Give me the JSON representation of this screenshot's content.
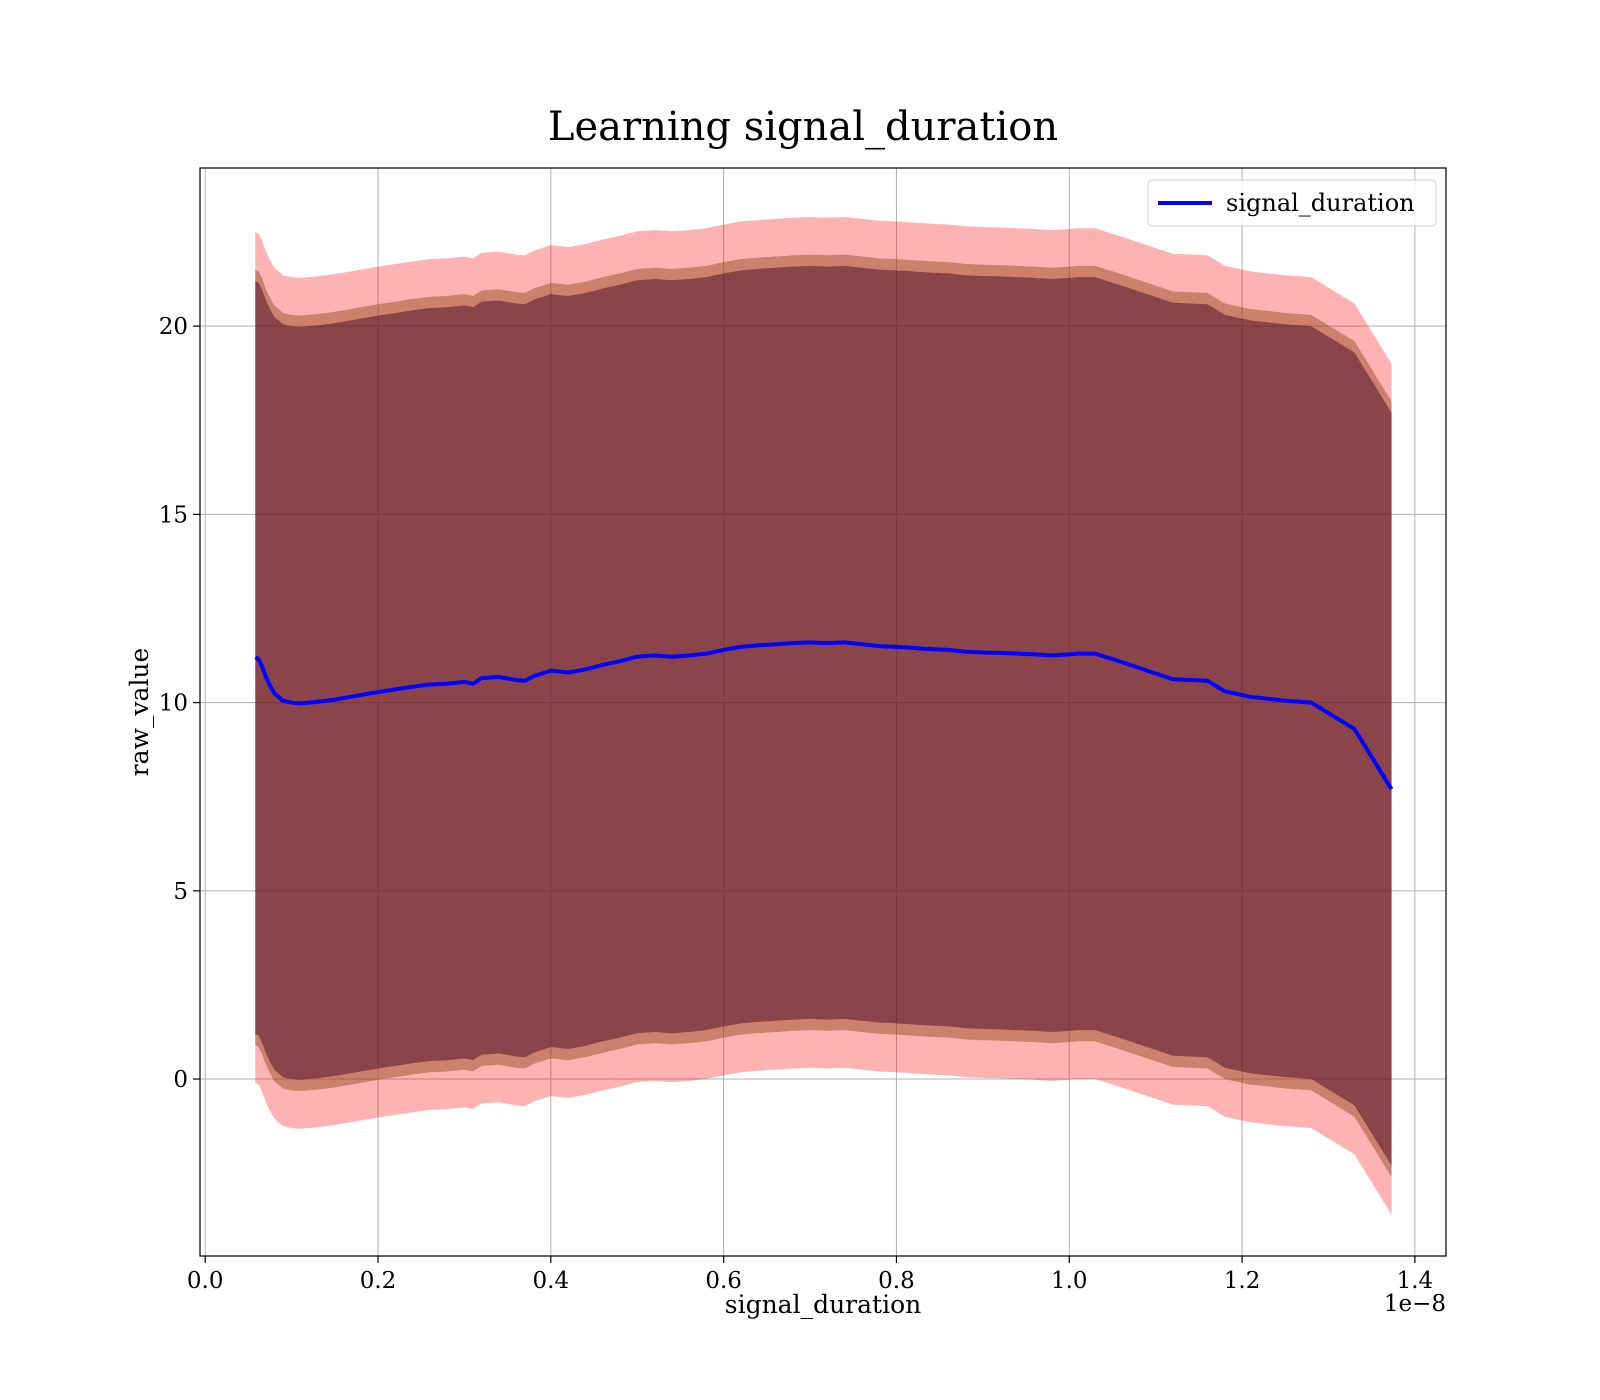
{
  "chart_data": {
    "type": "area",
    "title": "Learning signal_duration",
    "xlabel": "signal_duration",
    "ylabel": "raw_value",
    "x_offset_label": "1e−8",
    "xlim": [
      -0.006,
      1.436
    ],
    "ylim": [
      -4.7,
      24.2
    ],
    "x_ticks": [
      0.0,
      0.2,
      0.4,
      0.6,
      0.8,
      1.0,
      1.2,
      1.4
    ],
    "x_tick_labels": [
      "0.0",
      "0.2",
      "0.4",
      "0.6",
      "0.8",
      "1.0",
      "1.2",
      "1.4"
    ],
    "y_ticks": [
      0,
      5,
      10,
      15,
      20
    ],
    "y_tick_labels": [
      "0",
      "5",
      "10",
      "15",
      "20"
    ],
    "grid": true,
    "legend": {
      "location": "upper right",
      "entries": [
        "signal_duration"
      ]
    },
    "colors": {
      "mean_line": "#0000ff",
      "outer_band": "#ff0000",
      "middle_band": "#8b4513",
      "inner_band": "#4b0a2a"
    },
    "x": [
      0.058,
      0.062,
      0.066,
      0.07,
      0.075,
      0.08,
      0.085,
      0.09,
      0.095,
      0.1,
      0.11,
      0.12,
      0.13,
      0.14,
      0.15,
      0.16,
      0.18,
      0.2,
      0.22,
      0.24,
      0.26,
      0.28,
      0.3,
      0.31,
      0.32,
      0.34,
      0.36,
      0.37,
      0.38,
      0.4,
      0.42,
      0.44,
      0.46,
      0.48,
      0.5,
      0.52,
      0.54,
      0.56,
      0.58,
      0.6,
      0.62,
      0.64,
      0.66,
      0.68,
      0.7,
      0.72,
      0.74,
      0.76,
      0.78,
      0.8,
      0.82,
      0.84,
      0.86,
      0.88,
      0.9,
      0.92,
      0.94,
      0.96,
      0.98,
      1.0,
      1.01,
      1.03,
      1.06,
      1.09,
      1.12,
      1.16,
      1.18,
      1.21,
      1.25,
      1.28,
      1.33,
      1.373
    ],
    "series": [
      {
        "name": "signal_duration",
        "values": [
          11.2,
          11.15,
          10.95,
          10.7,
          10.45,
          10.25,
          10.15,
          10.05,
          10.02,
          10.0,
          9.98,
          10.0,
          10.02,
          10.05,
          10.08,
          10.12,
          10.2,
          10.28,
          10.35,
          10.42,
          10.48,
          10.5,
          10.55,
          10.5,
          10.65,
          10.68,
          10.6,
          10.58,
          10.7,
          10.85,
          10.8,
          10.88,
          11.0,
          11.1,
          11.22,
          11.25,
          11.22,
          11.25,
          11.3,
          11.4,
          11.48,
          11.52,
          11.55,
          11.58,
          11.6,
          11.58,
          11.6,
          11.55,
          11.5,
          11.48,
          11.45,
          11.42,
          11.4,
          11.35,
          11.33,
          11.32,
          11.3,
          11.28,
          11.25,
          11.28,
          11.3,
          11.3,
          11.08,
          10.85,
          10.62,
          10.58,
          10.3,
          10.15,
          10.05,
          10.0,
          9.3,
          7.7
        ]
      }
    ],
    "band_half_widths": [
      10.0,
      10.3,
      11.3
    ],
    "band_deviations": [
      [
        1.2,
        1.2,
        1.15,
        1.1,
        1.05,
        1.0,
        1.0,
        0.95,
        0.95,
        0.95,
        0.95,
        0.95,
        0.95,
        0.95,
        0.95,
        0.95,
        0.95,
        0.95,
        0.95,
        0.95,
        0.95,
        0.95,
        0.95,
        0.95,
        0.95,
        0.95,
        0.95,
        0.95,
        0.95,
        0.95,
        0.95,
        0.95,
        0.95,
        0.95,
        0.95,
        0.95,
        0.95,
        0.95,
        0.95,
        0.95,
        0.95,
        0.95,
        0.95,
        0.95,
        0.95,
        0.95,
        0.95,
        0.95,
        0.95,
        0.95,
        0.95,
        0.95,
        0.95,
        0.95,
        0.95,
        0.95,
        0.95,
        0.95,
        0.95,
        0.95,
        0.95,
        0.95,
        0.95,
        0.95,
        0.95,
        0.95,
        0.95,
        0.95,
        0.95,
        0.95,
        0.95,
        0.95
      ]
    ]
  }
}
